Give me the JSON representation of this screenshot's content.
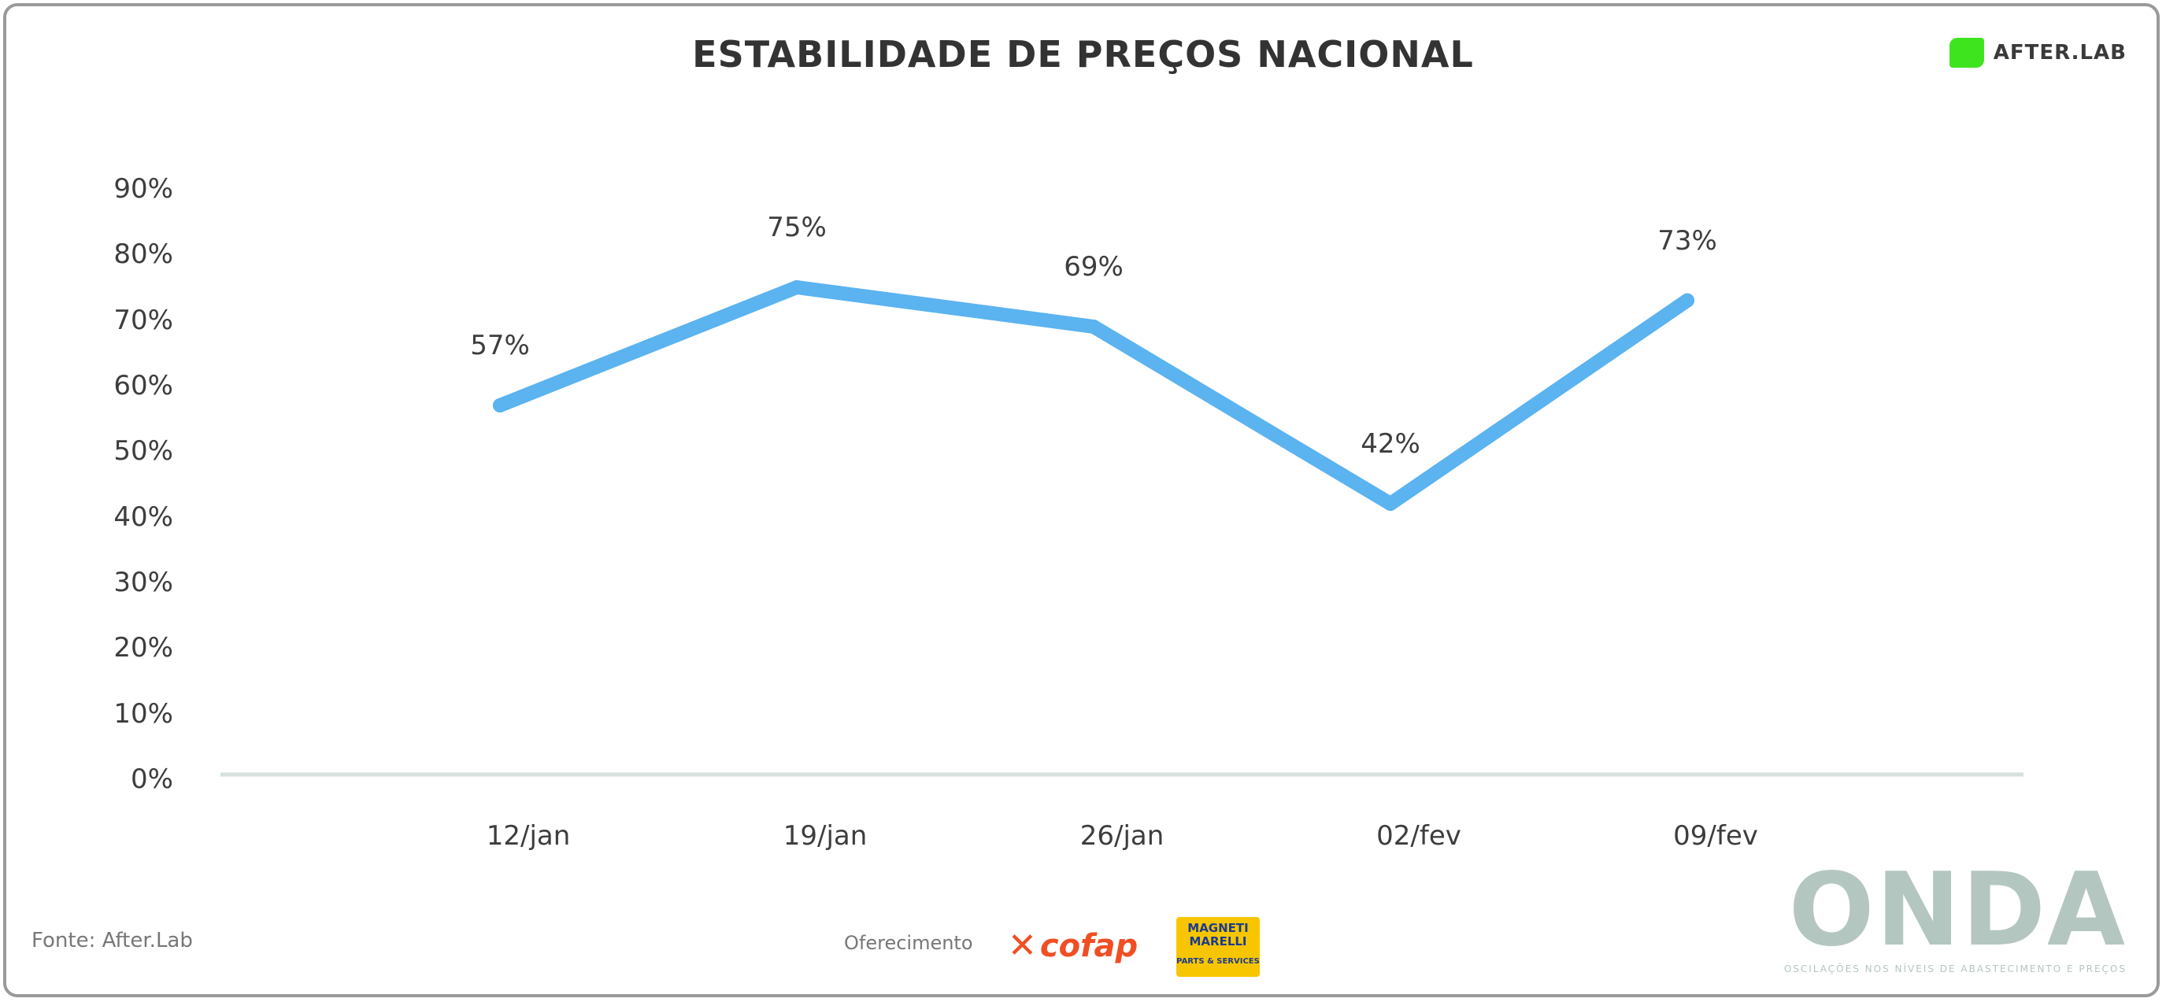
{
  "header": {
    "title": "ESTABILIDADE DE PREÇOS NACIONAL",
    "brand": "AFTER.LAB",
    "brand_color": "#3ee51f"
  },
  "chart_data": {
    "type": "line",
    "title": "ESTABILIDADE DE PREÇOS NACIONAL",
    "xlabel": "",
    "ylabel": "",
    "categories": [
      "12/jan",
      "19/jan",
      "26/jan",
      "02/fev",
      "09/fev"
    ],
    "series": [
      {
        "values": [
          57,
          75,
          69,
          42,
          73
        ],
        "color": "#5bb3f0"
      }
    ],
    "data_labels": [
      "57%",
      "75%",
      "69%",
      "42%",
      "73%"
    ],
    "y_ticks": [
      "0%",
      "10%",
      "20%",
      "30%",
      "40%",
      "50%",
      "60%",
      "70%",
      "80%",
      "90%"
    ],
    "ylim": [
      0,
      90
    ],
    "grid": false,
    "legend": "none",
    "baseline_color": "#d5e0dc"
  },
  "footer": {
    "source": "Fonte: After.Lab",
    "sponsor_label": "Oferecimento",
    "sponsor1": "cofap",
    "sponsor2_line1": "MAGNETI",
    "sponsor2_line2": "MARELLI",
    "sponsor2_sub": "PARTS & SERVICES",
    "onda": "ONDA",
    "onda_tagline": "OSCILAÇÕES NOS NÍVEIS DE ABASTECIMENTO E PREÇOS"
  }
}
